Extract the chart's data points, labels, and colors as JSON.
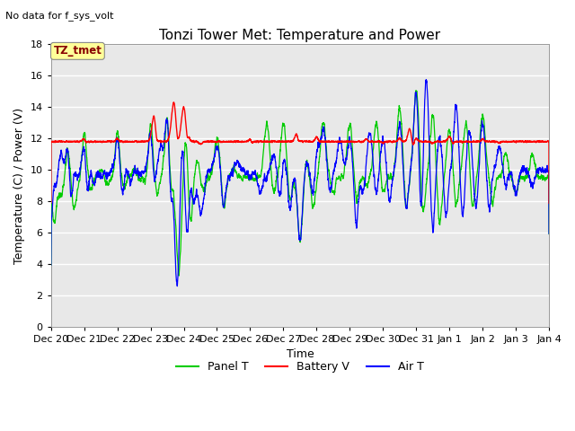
{
  "title": "Tonzi Tower Met: Temperature and Power",
  "subtitle": "No data for f_sys_volt",
  "xlabel": "Time",
  "ylabel": "Temperature (C) / Power (V)",
  "ylim": [
    0,
    18
  ],
  "yticks": [
    0,
    2,
    4,
    6,
    8,
    10,
    12,
    14,
    16,
    18
  ],
  "xtick_labels": [
    "Dec 20",
    "Dec 21",
    "Dec 22",
    "Dec 23",
    "Dec 24",
    "Dec 25",
    "Dec 26",
    "Dec 27",
    "Dec 28",
    "Dec 29",
    "Dec 30",
    "Dec 31",
    "Jan 1",
    "Jan 2",
    "Jan 3",
    "Jan 4"
  ],
  "legend_entries": [
    "Panel T",
    "Battery V",
    "Air T"
  ],
  "legend_colors": [
    "#00cc00",
    "#ff0000",
    "#0000ff"
  ],
  "tag_label": "TZ_tmet",
  "tag_color": "#880000",
  "tag_bg": "#ffff99",
  "background_color": "#ffffff",
  "plot_bg_color": "#e8e8e8",
  "grid_color": "#ffffff",
  "title_fontsize": 11,
  "axis_fontsize": 9,
  "tick_fontsize": 8
}
